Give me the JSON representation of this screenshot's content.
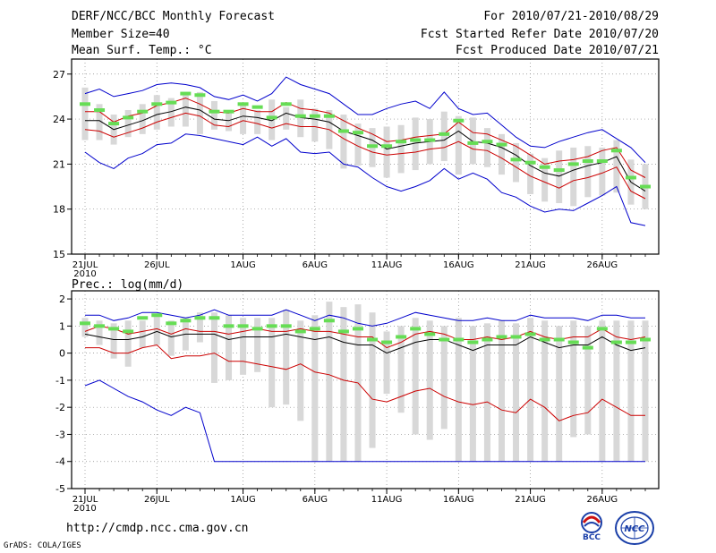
{
  "header": {
    "title": "DERF/NCC/BCC Monthly Forecast",
    "member_size": "Member Size=40",
    "variable": "Mean Surf. Temp.: °C",
    "period": "For 2010/07/21-2010/08/29",
    "fcst_started": "Fcst Started Refer Date 2010/07/20",
    "fcst_produced": "Fcst Produced Date 2010/07/21"
  },
  "footer": {
    "url": "http://cmdp.ncc.cma.gov.cn",
    "grads": "GrADS: COLA/IGES",
    "logo_left_text": "BCC",
    "logo_right_text": "NCC"
  },
  "colors": {
    "envelope": "#0000cc",
    "spread": "#cc0000",
    "mean": "#000000",
    "box": "#d8d8d8",
    "median_marker": "#66dd55"
  },
  "chart_data": [
    {
      "type": "box-ensemble",
      "title": "Mean Surf. Temp.: °C",
      "x_days": 39,
      "xlabel": "",
      "ylabel": "",
      "ylim": [
        15,
        28
      ],
      "yticks": [
        15,
        18,
        21,
        24,
        27
      ],
      "xtick_labels": [
        "21JUL",
        "26JUL",
        "1AUG",
        "6AUG",
        "11AUG",
        "16AUG",
        "21AUG",
        "26AUG"
      ],
      "xtick_days": [
        0,
        5,
        11,
        16,
        21,
        26,
        31,
        36
      ],
      "year_label": "2010",
      "grid": "dotted",
      "series": [
        {
          "name": "max",
          "values": [
            25.7,
            26.0,
            25.5,
            25.7,
            25.9,
            26.3,
            26.4,
            26.3,
            26.1,
            25.5,
            25.3,
            25.6,
            25.2,
            25.7,
            26.8,
            26.3,
            26.0,
            25.7,
            25.0,
            24.3,
            24.3,
            24.7,
            25.0,
            25.2,
            24.7,
            25.8,
            24.7,
            24.3,
            24.4,
            23.6,
            22.8,
            22.2,
            22.1,
            22.5,
            22.8,
            23.1,
            23.3,
            22.7,
            22.1,
            21.1
          ]
        },
        {
          "name": "upper",
          "values": [
            24.5,
            24.5,
            23.8,
            24.2,
            24.4,
            24.9,
            25.1,
            25.4,
            25.0,
            24.5,
            24.4,
            24.7,
            24.5,
            24.5,
            25.1,
            24.7,
            24.6,
            24.4,
            23.9,
            23.4,
            23.0,
            22.5,
            22.6,
            22.8,
            22.9,
            23.0,
            23.8,
            23.1,
            23.0,
            22.6,
            22.2,
            21.6,
            21.0,
            21.2,
            21.3,
            21.5,
            21.9,
            22.1,
            20.6,
            20.1
          ]
        },
        {
          "name": "mean",
          "values": [
            23.9,
            23.9,
            23.3,
            23.6,
            23.9,
            24.3,
            24.5,
            24.8,
            24.6,
            24.0,
            23.9,
            24.2,
            24.1,
            23.9,
            24.4,
            24.1,
            24.0,
            23.8,
            23.2,
            22.9,
            22.6,
            22.0,
            22.2,
            22.4,
            22.5,
            22.6,
            23.2,
            22.5,
            22.4,
            22.1,
            21.6,
            20.9,
            20.4,
            20.2,
            20.6,
            20.9,
            21.1,
            21.5,
            19.8,
            19.2
          ]
        },
        {
          "name": "lower",
          "values": [
            23.3,
            23.2,
            22.8,
            23.1,
            23.4,
            23.8,
            24.1,
            24.4,
            24.2,
            23.6,
            23.5,
            23.9,
            23.7,
            23.4,
            23.7,
            23.5,
            23.5,
            23.3,
            22.7,
            22.2,
            21.8,
            21.6,
            21.7,
            21.8,
            22.0,
            22.1,
            22.5,
            22.0,
            21.9,
            21.4,
            20.8,
            20.2,
            19.8,
            19.4,
            19.9,
            20.1,
            20.4,
            20.8,
            19.2,
            18.7
          ]
        },
        {
          "name": "min",
          "values": [
            21.8,
            21.1,
            20.7,
            21.4,
            21.7,
            22.3,
            22.4,
            23.0,
            22.9,
            22.7,
            22.5,
            22.3,
            22.8,
            22.2,
            22.7,
            21.8,
            21.7,
            21.8,
            21.0,
            20.8,
            20.1,
            19.5,
            19.2,
            19.5,
            19.9,
            20.7,
            20.0,
            20.4,
            20.0,
            19.1,
            18.8,
            18.2,
            17.8,
            18.0,
            17.9,
            18.4,
            18.9,
            19.5,
            17.1,
            16.9
          ]
        },
        {
          "name": "box_top",
          "values": [
            26.1,
            25.0,
            24.3,
            24.6,
            25.0,
            25.6,
            25.4,
            25.7,
            25.8,
            25.2,
            24.6,
            24.9,
            24.6,
            25.3,
            24.8,
            25.3,
            24.7,
            24.6,
            24.3,
            23.7,
            23.4,
            23.5,
            23.6,
            24.1,
            24.0,
            24.5,
            24.2,
            24.1,
            23.4,
            23.0,
            22.4,
            21.7,
            21.4,
            21.9,
            22.1,
            22.2,
            22.1,
            22.6,
            21.3,
            21.0
          ]
        },
        {
          "name": "box_bottom",
          "values": [
            22.6,
            22.6,
            22.3,
            22.8,
            23.0,
            23.3,
            23.5,
            23.5,
            23.0,
            23.3,
            23.2,
            23.0,
            23.0,
            22.6,
            23.3,
            22.8,
            22.5,
            22.0,
            20.7,
            20.9,
            20.8,
            20.1,
            20.4,
            20.6,
            21.0,
            21.2,
            20.3,
            21.0,
            20.8,
            20.3,
            19.8,
            19.0,
            18.5,
            18.4,
            18.2,
            18.8,
            18.9,
            19.1,
            18.3,
            18.0
          ]
        },
        {
          "name": "median",
          "values": [
            25.0,
            24.6,
            23.7,
            24.1,
            24.5,
            25.0,
            25.1,
            25.7,
            25.6,
            24.5,
            24.5,
            25.0,
            24.8,
            24.1,
            25.0,
            24.2,
            24.2,
            24.2,
            23.2,
            23.1,
            22.2,
            22.2,
            22.5,
            22.6,
            22.6,
            23.0,
            23.9,
            22.4,
            22.5,
            22.3,
            21.3,
            21.1,
            20.8,
            20.6,
            21.0,
            21.2,
            21.2,
            21.9,
            20.1,
            19.5
          ]
        }
      ]
    },
    {
      "type": "box-ensemble",
      "title": "Prec.: log(mm/d)",
      "x_days": 39,
      "xlabel": "",
      "ylabel": "",
      "ylim": [
        -5,
        2.3
      ],
      "yticks": [
        -5,
        -4,
        -3,
        -2,
        -1,
        0,
        1,
        2
      ],
      "xtick_labels": [
        "21JUL",
        "26JUL",
        "1AUG",
        "6AUG",
        "11AUG",
        "16AUG",
        "21AUG",
        "26AUG"
      ],
      "xtick_days": [
        0,
        5,
        11,
        16,
        21,
        26,
        31,
        36
      ],
      "year_label": "2010",
      "grid": "dotted",
      "series": [
        {
          "name": "max",
          "values": [
            1.4,
            1.4,
            1.2,
            1.3,
            1.5,
            1.5,
            1.4,
            1.3,
            1.4,
            1.6,
            1.4,
            1.4,
            1.4,
            1.4,
            1.6,
            1.4,
            1.2,
            1.4,
            1.3,
            1.1,
            1.0,
            1.1,
            1.3,
            1.5,
            1.4,
            1.3,
            1.2,
            1.2,
            1.3,
            1.2,
            1.2,
            1.4,
            1.3,
            1.3,
            1.3,
            1.2,
            1.4,
            1.4,
            1.3,
            1.3
          ]
        },
        {
          "name": "upper",
          "values": [
            0.8,
            1.0,
            0.9,
            0.7,
            0.8,
            0.9,
            0.7,
            0.9,
            0.8,
            0.8,
            0.7,
            0.8,
            0.9,
            0.8,
            0.8,
            0.9,
            0.8,
            0.8,
            0.7,
            0.6,
            0.6,
            0.2,
            0.4,
            0.7,
            0.8,
            0.7,
            0.5,
            0.5,
            0.6,
            0.5,
            0.6,
            0.8,
            0.6,
            0.5,
            0.6,
            0.6,
            0.9,
            0.6,
            0.5,
            0.6
          ]
        },
        {
          "name": "mean",
          "values": [
            0.7,
            0.6,
            0.5,
            0.5,
            0.6,
            0.8,
            0.6,
            0.7,
            0.7,
            0.7,
            0.5,
            0.6,
            0.6,
            0.6,
            0.7,
            0.6,
            0.5,
            0.6,
            0.4,
            0.3,
            0.3,
            0.0,
            0.2,
            0.4,
            0.5,
            0.5,
            0.3,
            0.1,
            0.3,
            0.3,
            0.3,
            0.6,
            0.4,
            0.2,
            0.3,
            0.3,
            0.6,
            0.3,
            0.1,
            0.2
          ]
        },
        {
          "name": "lower",
          "values": [
            0.2,
            0.2,
            0.0,
            0.0,
            0.2,
            0.3,
            -0.2,
            -0.1,
            -0.1,
            0.0,
            -0.3,
            -0.3,
            -0.4,
            -0.5,
            -0.6,
            -0.4,
            -0.7,
            -0.8,
            -1.0,
            -1.1,
            -1.7,
            -1.8,
            -1.6,
            -1.4,
            -1.3,
            -1.6,
            -1.8,
            -1.9,
            -1.8,
            -2.1,
            -2.2,
            -1.7,
            -2.0,
            -2.5,
            -2.3,
            -2.2,
            -1.7,
            -2.0,
            -2.3,
            -2.3
          ]
        },
        {
          "name": "min",
          "values": [
            -1.2,
            -1.0,
            -1.3,
            -1.6,
            -1.8,
            -2.1,
            -2.3,
            -2.0,
            -2.2,
            -4.0,
            -4.0,
            -4.0,
            -4.0,
            -4.0,
            -4.0,
            -4.0,
            -4.0,
            -4.0,
            -4.0,
            -4.0,
            -4.0,
            -4.0,
            -4.0,
            -4.0,
            -4.0,
            -4.0,
            -4.0,
            -4.0,
            -4.0,
            -4.0,
            -4.0,
            -4.0,
            -4.0,
            -4.0,
            -4.0,
            -4.0,
            -4.0,
            -4.0,
            -4.0,
            -4.0
          ]
        },
        {
          "name": "box_top",
          "values": [
            1.3,
            1.2,
            1.1,
            1.2,
            1.2,
            1.4,
            1.2,
            1.3,
            1.5,
            1.5,
            1.4,
            1.3,
            1.3,
            1.3,
            1.6,
            1.2,
            1.4,
            1.9,
            1.7,
            1.8,
            1.5,
            0.8,
            1.0,
            1.3,
            1.2,
            1.0,
            1.3,
            1.0,
            1.1,
            1.2,
            1.1,
            1.3,
            1.2,
            1.0,
            1.2,
            1.0,
            1.2,
            1.2,
            1.2,
            1.2
          ]
        },
        {
          "name": "box_bottom",
          "values": [
            0.6,
            0.3,
            -0.2,
            -0.5,
            0.2,
            0.3,
            -0.1,
            0.1,
            0.4,
            -1.1,
            -1.0,
            -0.8,
            -0.7,
            -2.0,
            -1.9,
            -2.5,
            -4.0,
            -4.0,
            -4.0,
            -4.0,
            -3.5,
            -1.5,
            -2.2,
            -3.0,
            -3.2,
            -2.8,
            -4.0,
            -4.0,
            -4.0,
            -4.0,
            -4.0,
            -4.0,
            -4.0,
            -4.0,
            -3.1,
            -3.0,
            -4.0,
            -4.0,
            -4.0,
            -4.0
          ]
        },
        {
          "name": "median",
          "values": [
            1.1,
            1.0,
            0.9,
            0.8,
            1.3,
            1.4,
            1.1,
            1.2,
            1.3,
            1.3,
            1.0,
            1.0,
            0.9,
            1.0,
            1.0,
            0.8,
            0.9,
            1.2,
            0.8,
            0.9,
            0.5,
            0.4,
            0.6,
            0.9,
            0.7,
            0.5,
            0.5,
            0.4,
            0.5,
            0.6,
            0.6,
            0.7,
            0.5,
            0.5,
            0.4,
            0.2,
            0.9,
            0.4,
            0.4,
            0.5
          ]
        }
      ]
    }
  ]
}
